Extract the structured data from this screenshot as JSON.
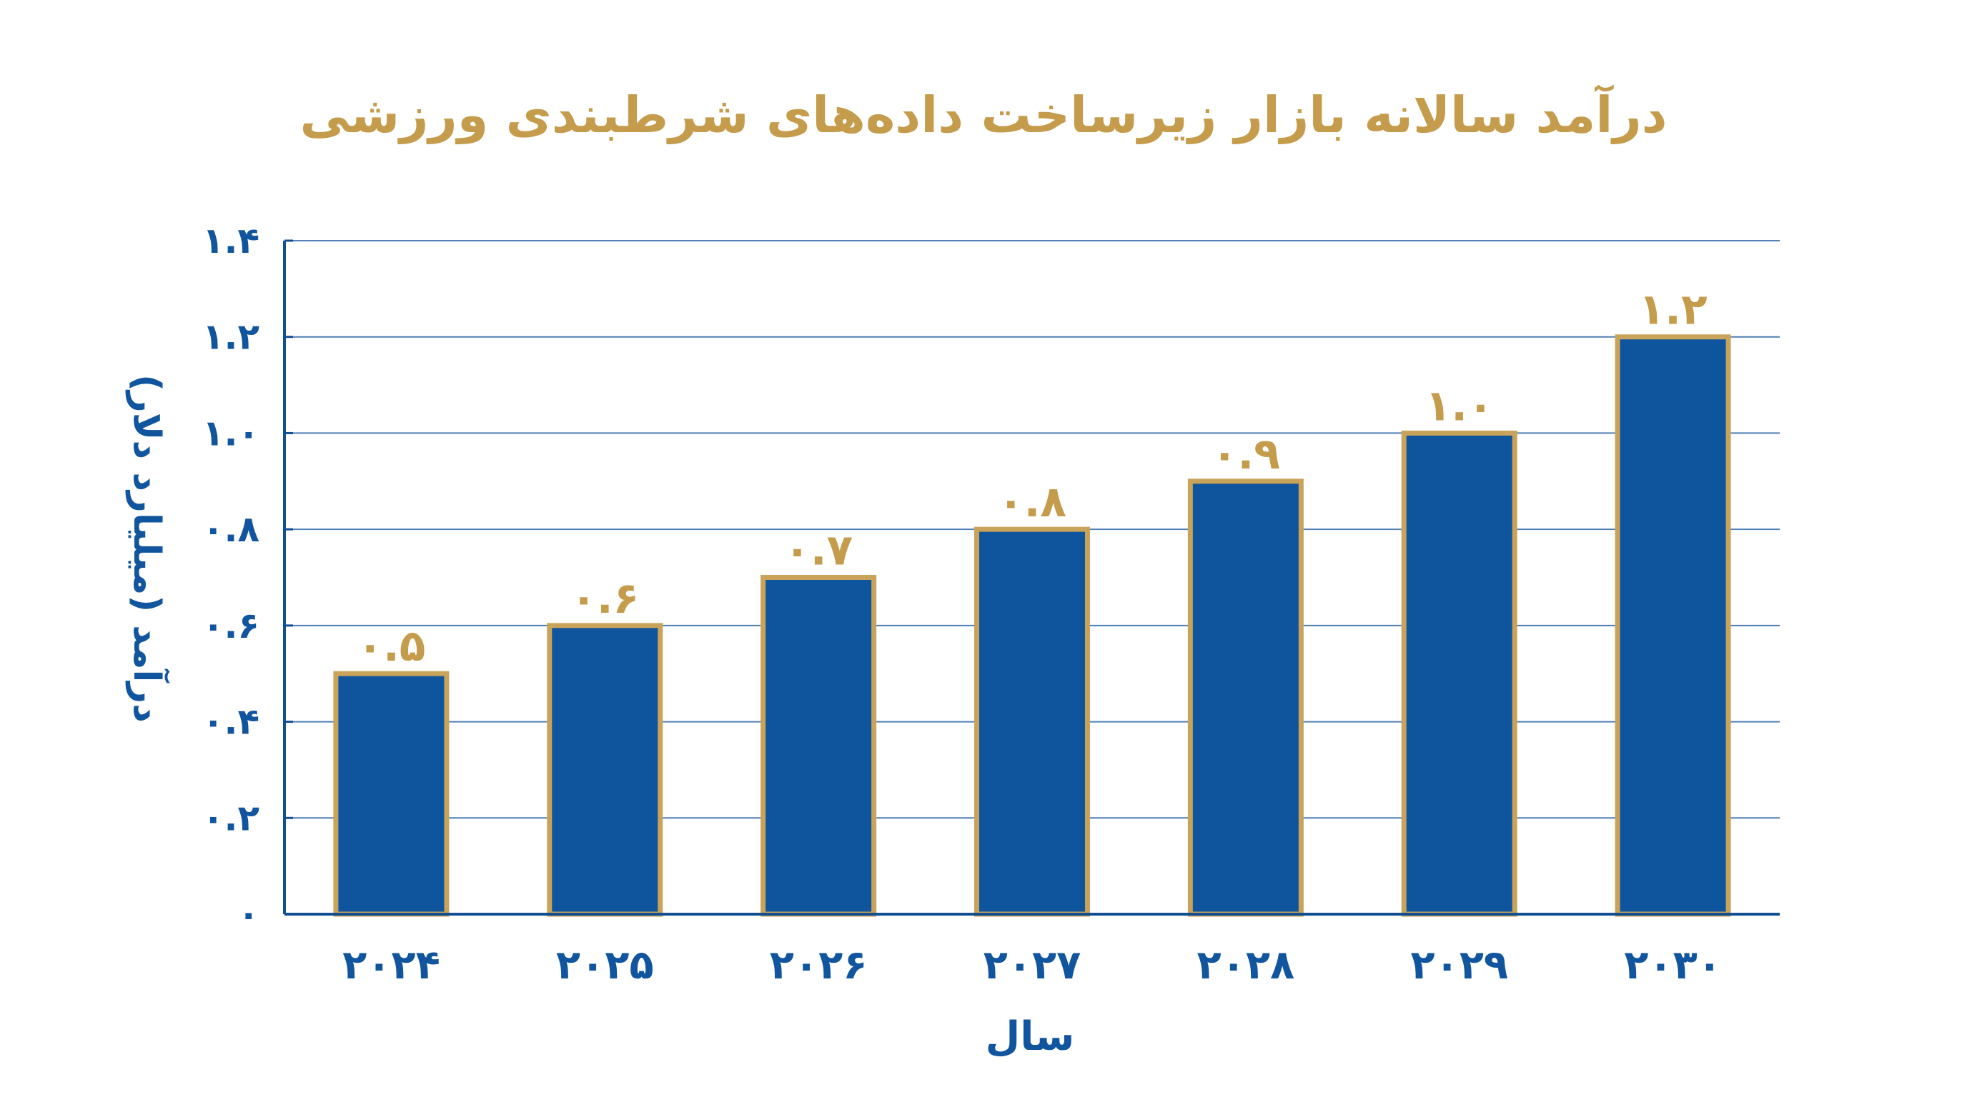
{
  "chart_data": {
    "type": "bar",
    "title": "درآمد سالانه بازار زیرساخت داده‌های شرطبندی ورزشی",
    "xlabel": "سال",
    "ylabel": "درآمد (میلیارد دلار)",
    "categories": [
      "۲۰۲۴",
      "۲۰۲۵",
      "۲۰۲۶",
      "۲۰۲۷",
      "۲۰۲۸",
      "۲۰۲۹",
      "۲۰۳۰"
    ],
    "values": [
      0.5,
      0.6,
      0.7,
      0.8,
      0.9,
      1.0,
      1.2
    ],
    "data_labels": [
      "۰.۵",
      "۰.۶",
      "۰.۷",
      "۰.۸",
      "۰.۹",
      "۱.۰",
      "۱.۲"
    ],
    "ylim": [
      0,
      1.4
    ],
    "yticks": [
      0,
      0.2,
      0.4,
      0.6,
      0.8,
      1.0,
      1.2,
      1.4
    ],
    "ytick_labels": [
      "۰",
      "۰.۲",
      "۰.۴",
      "۰.۶",
      "۰.۸",
      "۱.۰",
      "۱.۲",
      "۱.۴"
    ],
    "grid": true,
    "colors": {
      "bar_fill": "#0F559D",
      "bar_border": "#C9A35A",
      "title": "#C49C4C",
      "axis_text": "#10559D",
      "grid": "#4F7FB4",
      "axis_line": "#114F92"
    }
  }
}
